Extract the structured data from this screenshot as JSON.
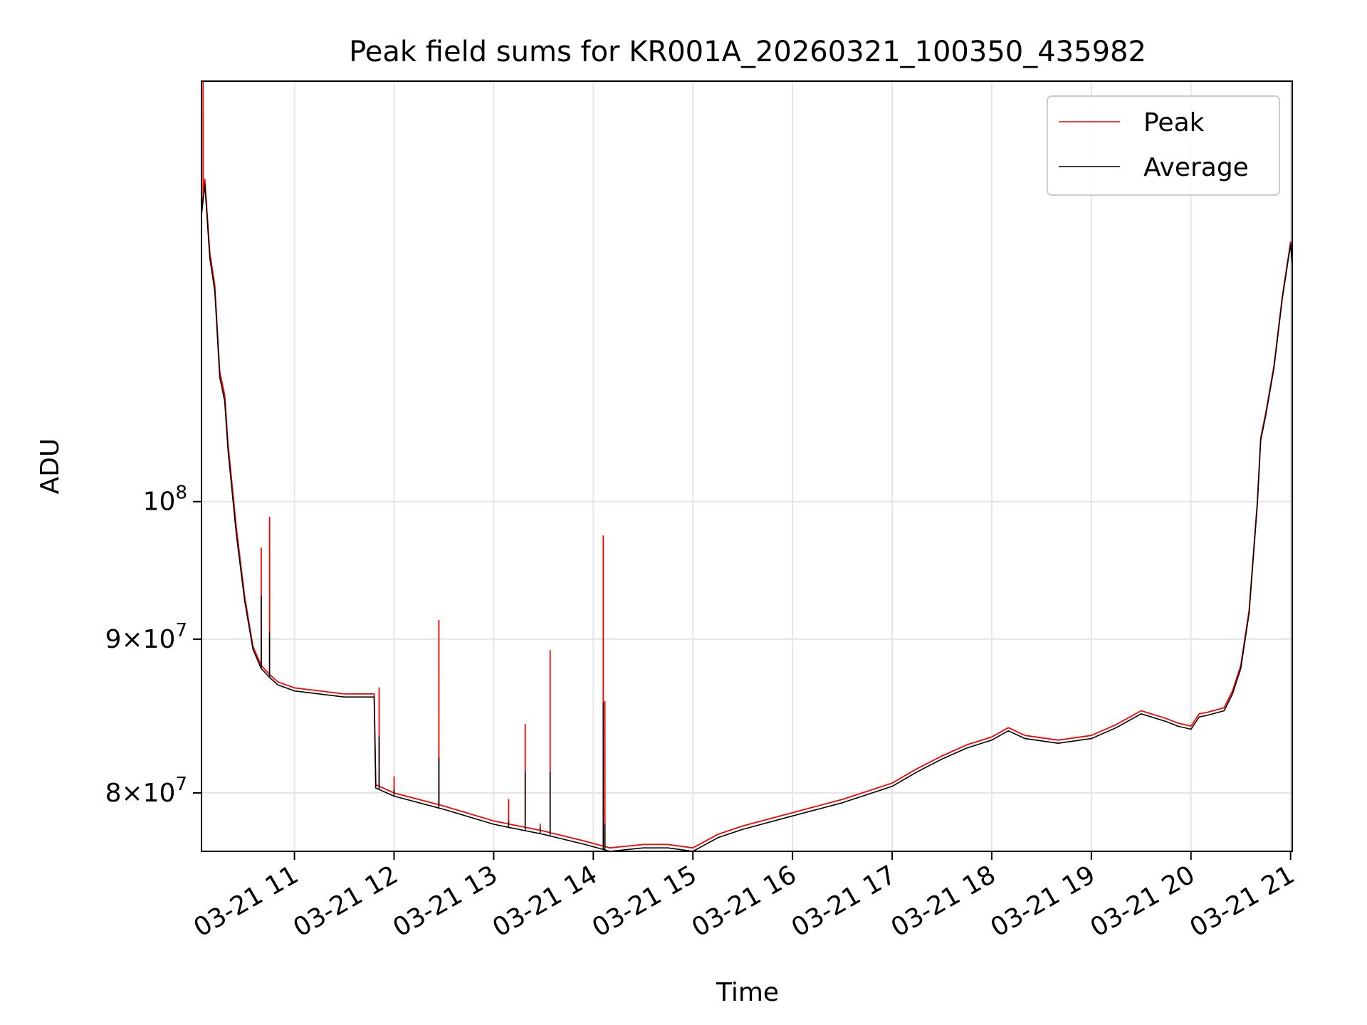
{
  "chart_data": {
    "type": "line",
    "title": "Peak field sums for KR001A_20260321_100350_435982",
    "xlabel": "Time",
    "ylabel": "ADU",
    "y_scale": "log",
    "ylim": [
      76500000,
      138000000
    ],
    "xlim": [
      "03-21 10:04",
      "03-21 21:01"
    ],
    "grid": true,
    "legend_position": "top-right",
    "x_ticks": [
      "03-21 11",
      "03-21 12",
      "03-21 13",
      "03-21 14",
      "03-21 15",
      "03-21 16",
      "03-21 17",
      "03-21 18",
      "03-21 19",
      "03-21 20",
      "03-21 21"
    ],
    "y_ticks": [
      {
        "value": 80000000,
        "mantissa": "8",
        "base": "10",
        "exponent": "7"
      },
      {
        "value": 90000000,
        "mantissa": "9",
        "base": "10",
        "exponent": "7"
      },
      {
        "value": 100000000,
        "mantissa": "",
        "base": "10",
        "exponent": "8"
      }
    ],
    "time_points": [
      "03-21 10:04",
      "03-21 10:06",
      "03-21 10:09",
      "03-21 10:12",
      "03-21 10:15",
      "03-21 10:18",
      "03-21 10:20",
      "03-21 10:25",
      "03-21 10:30",
      "03-21 10:35",
      "03-21 10:40",
      "03-21 10:45",
      "03-21 10:48",
      "03-21 10:50",
      "03-21 10:55",
      "03-21 11:00",
      "03-21 11:30",
      "03-21 11:48",
      "03-21 11:49",
      "03-21 12:00",
      "03-21 12:30",
      "03-21 13:00",
      "03-21 13:30",
      "03-21 13:55",
      "03-21 14:10",
      "03-21 14:30",
      "03-21 14:45",
      "03-21 15:00",
      "03-21 15:15",
      "03-21 15:30",
      "03-21 16:00",
      "03-21 16:30",
      "03-21 17:00",
      "03-21 17:15",
      "03-21 17:30",
      "03-21 17:45",
      "03-21 18:00",
      "03-21 18:10",
      "03-21 18:20",
      "03-21 18:40",
      "03-21 19:00",
      "03-21 19:15",
      "03-21 19:30",
      "03-21 19:45",
      "03-21 19:52",
      "03-21 20:00",
      "03-21 20:05",
      "03-21 20:10",
      "03-21 20:20",
      "03-21 20:25",
      "03-21 20:30",
      "03-21 20:35",
      "03-21 20:40",
      "03-21 20:42",
      "03-21 20:45",
      "03-21 20:50",
      "03-21 20:55",
      "03-21 21:00",
      "03-21 21:01"
    ],
    "series": [
      {
        "name": "Peak",
        "color": "#ff0000",
        "values": [
          125000000,
          128000000,
          121000000,
          118000000,
          110500000,
          108500000,
          104500000,
          98000000,
          93000000,
          89500000,
          88200000,
          87600000,
          87300000,
          87100000,
          86900000,
          86700000,
          86300000,
          86300000,
          80500000,
          80000000,
          79200000,
          78300000,
          77700000,
          77100000,
          76700000,
          76900000,
          76900000,
          76700000,
          77500000,
          78000000,
          78800000,
          79600000,
          80600000,
          81500000,
          82300000,
          83000000,
          83500000,
          84100000,
          83600000,
          83300000,
          83600000,
          84300000,
          85200000,
          84700000,
          84400000,
          84200000,
          85000000,
          85100000,
          85400000,
          86500000,
          88200000,
          92000000,
          100000000,
          105000000,
          107000000,
          111000000,
          117000000,
          122000000,
          120000000
        ]
      },
      {
        "name": "Average",
        "color": "#000000",
        "values": [
          124500000,
          127500000,
          120500000,
          117500000,
          110000000,
          108000000,
          104000000,
          97500000,
          92700000,
          89300000,
          88000000,
          87400000,
          87100000,
          86900000,
          86700000,
          86500000,
          86100000,
          86100000,
          80300000,
          79800000,
          79000000,
          78100000,
          77500000,
          76900000,
          76500000,
          76700000,
          76700000,
          76500000,
          77300000,
          77800000,
          78600000,
          79400000,
          80400000,
          81300000,
          82100000,
          82800000,
          83300000,
          83900000,
          83400000,
          83100000,
          83400000,
          84100000,
          85000000,
          84500000,
          84200000,
          84000000,
          84800000,
          84900000,
          85200000,
          86300000,
          88000000,
          91800000,
          99800000,
          104800000,
          106800000,
          110800000,
          116800000,
          121800000,
          119800000
        ]
      }
    ],
    "spikes": [
      {
        "time": "03-21 10:05",
        "peak": 138000000,
        "average": 126000000
      },
      {
        "time": "03-21 10:40",
        "peak": 96500000,
        "average": 93000000
      },
      {
        "time": "03-21 10:45",
        "peak": 98800000,
        "average": 90500000
      },
      {
        "time": "03-21 11:51",
        "peak": 86700000,
        "average": 83500000
      },
      {
        "time": "03-21 12:00",
        "peak": 81000000,
        "average": 80200000
      },
      {
        "time": "03-21 12:27",
        "peak": 91300000,
        "average": 82200000
      },
      {
        "time": "03-21 13:09",
        "peak": 79600000,
        "average": 78300000
      },
      {
        "time": "03-21 13:19",
        "peak": 84300000,
        "average": 81300000
      },
      {
        "time": "03-21 13:28",
        "peak": 78100000,
        "average": 77900000
      },
      {
        "time": "03-21 13:34",
        "peak": 89200000,
        "average": 81300000
      },
      {
        "time": "03-21 14:06",
        "peak": 97400000,
        "average": 85700000
      },
      {
        "time": "03-21 14:07",
        "peak": 85800000,
        "average": 78100000
      }
    ]
  }
}
